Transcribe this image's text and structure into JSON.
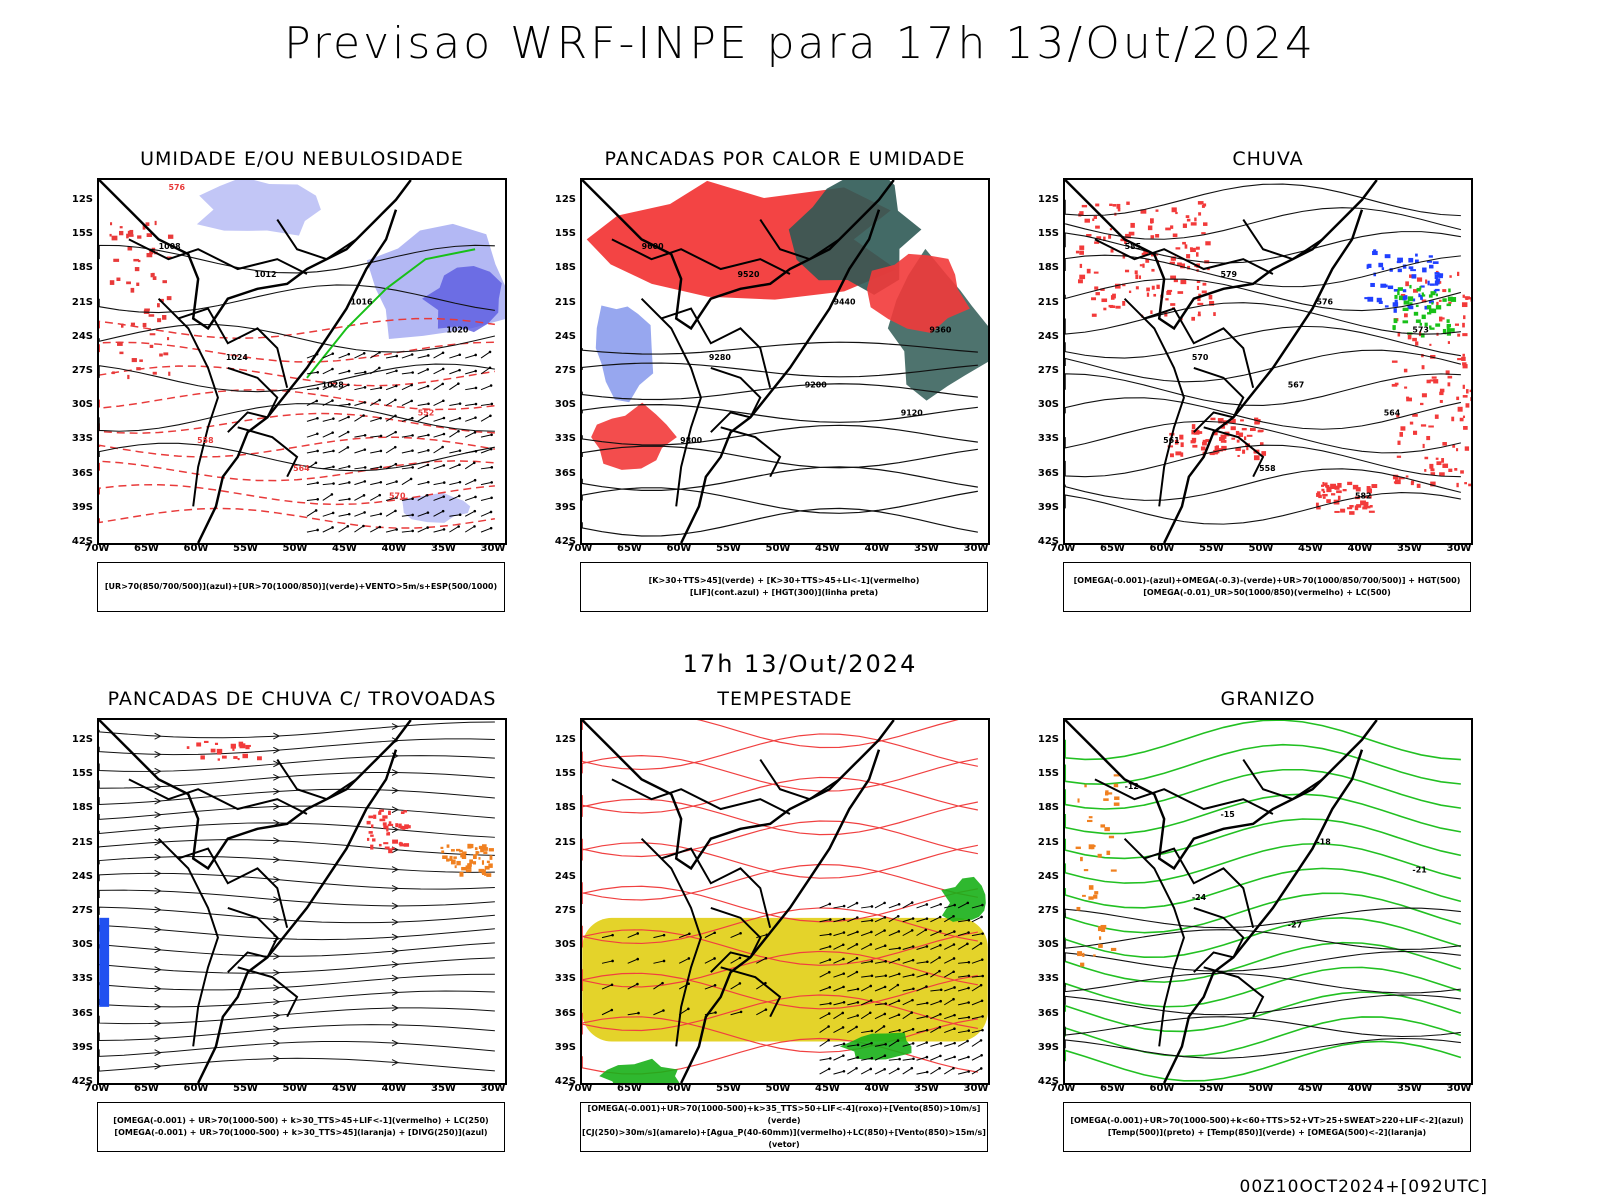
{
  "header": {
    "title": "Previsao WRF-INPE  para 17h 13/Out/2024",
    "subtitle": "17h 13/Out/2024",
    "footer": "00Z10OCT2024+[092UTC]"
  },
  "axes": {
    "lat_labels": [
      "12S",
      "15S",
      "18S",
      "21S",
      "24S",
      "27S",
      "30S",
      "33S",
      "36S",
      "39S",
      "42S"
    ],
    "lon_labels": [
      "70W",
      "65W",
      "60W",
      "55W",
      "50W",
      "45W",
      "40W",
      "35W",
      "30W"
    ]
  },
  "panels": [
    {
      "title": "UMIDADE E/OU NEBULOSIDADE",
      "legend": [
        "[UR>70(850/700/500)](azul)+[UR>70(1000/850)](verde)+VENTO>5m/s+ESP(500/1000)"
      ],
      "contour_labels": [
        "1008",
        "1012",
        "1016",
        "1020",
        "1024",
        "1028",
        "552",
        "558",
        "564",
        "570",
        "576"
      ],
      "colors": {
        "shade": "#9aa0f0",
        "shade2": "#5a5ae0",
        "contour": "#e83a3a",
        "green": "#18c018"
      }
    },
    {
      "title": "PANCADAS POR CALOR E UMIDADE",
      "legend": [
        "[K>30+TTS>45](verde) + [K>30+TTS>45+LI<-1](vermelho)",
        "[LIF](cont.azul) + [HGT(300)](linha preta)"
      ],
      "contour_labels": [
        "9600",
        "9520",
        "9440",
        "9360",
        "9280",
        "9200",
        "9120",
        "9800"
      ],
      "colors": {
        "shade": "#f23a3a",
        "shade2": "#2f5a55",
        "contour": "#3050e0"
      }
    },
    {
      "title": "CHUVA",
      "legend": [
        "[OMEGA(-0.001)-(azul)+OMEGA(-0.3)-(verde)+UR>70(1000/850/700/500)] + HGT(500)",
        "[OMEGA(-0.01)_UR>50(1000/850)(vermelho) + LC(500)"
      ],
      "contour_labels": [
        "585",
        "579",
        "576",
        "573",
        "570",
        "567",
        "564",
        "561",
        "558",
        "582"
      ],
      "colors": {
        "shade": "#f23a3a",
        "shade2": "#2040ff",
        "green": "#18c018"
      }
    },
    {
      "title": "PANCADAS DE CHUVA C/ TROVOADAS",
      "legend": [
        "[OMEGA(-0.001) + UR>70(1000-500) + k>30_TTS>45+LIF<-1](vermelho) + LC(250)",
        "[OMEGA(-0.001) + UR>70(1000-500) + k>30_TTS>45](laranja) + [DIVG(250)](azul)"
      ],
      "contour_labels": [],
      "colors": {
        "shade": "#f23a3a",
        "shade2": "#f08020",
        "blue": "#2050f0"
      }
    },
    {
      "title": "TEMPESTADE",
      "legend": [
        "[OMEGA(-0.001)+UR>70(1000-500)+k>35_TTS>50+LIF<-4](roxo)+[Vento(850)>10m/s](verde)",
        "[CJ(250)>30m/s](amarelo)+[Agua_P(40-60mm)](vermelho)+LC(850)+[Vento(850)>15m/s](vetor)"
      ],
      "contour_labels": [],
      "colors": {
        "shade": "#e4d32a",
        "contour": "#f04040",
        "green": "#18b018"
      }
    },
    {
      "title": "GRANIZO",
      "legend": [
        "[OMEGA(-0.001)+UR>70(1000-500)+k<60+TTS>52+VT>25+SWEAT>220+LIF<-2](azul)",
        "[Temp(500)](preto) + [Temp(850)](verde) + [OMEGA(500)<-2](laranja)"
      ],
      "contour_labels": [
        "-12",
        "-15",
        "-18",
        "-21",
        "-24",
        "-27"
      ],
      "colors": {
        "contour": "#22c022",
        "shade": "#f08020"
      }
    }
  ]
}
